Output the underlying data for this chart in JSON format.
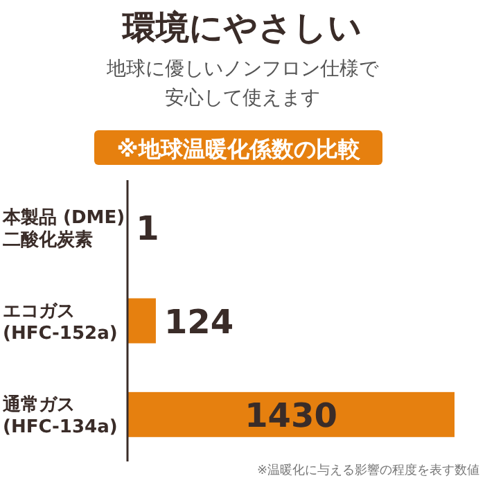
{
  "chart_data": {
    "type": "bar",
    "orientation": "horizontal",
    "title": "環境にやさしい",
    "subtitle": "地球に優しいノンフロン仕様で安心して使えます",
    "annotations": [
      "※地球温暖化係数の比較",
      "※温暖化に与える影響の程度を表す数値"
    ],
    "categories": [
      "本製品 (DME)\n二酸化炭素",
      "エコガス\n(HFC-152a)",
      "通常ガス\n(HFC-134a)"
    ],
    "values": [
      1,
      124,
      1430
    ],
    "color": "#e6800f",
    "data_labels": true
  }
}
